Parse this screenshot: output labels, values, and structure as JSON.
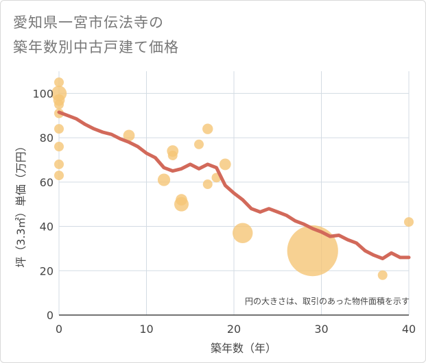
{
  "title_line1": "愛知県一宮市伝法寺の",
  "title_line2": "築年数別中古戸建て価格",
  "chart_data": {
    "type": "scatter+line",
    "title": "愛知県一宮市伝法寺の築年数別中古戸建て価格",
    "xlabel": "築年数（年）",
    "ylabel": "坪（3.3㎡）単価（万円）",
    "xlim": [
      0,
      40
    ],
    "ylim": [
      0,
      110
    ],
    "x_ticks": [
      0,
      10,
      20,
      30,
      40
    ],
    "y_ticks": [
      0,
      20,
      40,
      60,
      80,
      100
    ],
    "annotation": "円の大きさは、取引のあった物件面積を示す",
    "colors": {
      "line": "#d2695a",
      "bubble": "#f5c677",
      "grid": "#d3dbe3"
    },
    "scatter": [
      {
        "x": 0,
        "y": 105,
        "size": 1.0
      },
      {
        "x": 0,
        "y": 100,
        "size": 1.6
      },
      {
        "x": 0,
        "y": 97,
        "size": 1.2
      },
      {
        "x": 0,
        "y": 95,
        "size": 1.0
      },
      {
        "x": 0,
        "y": 91,
        "size": 1.0
      },
      {
        "x": 0,
        "y": 84,
        "size": 1.0
      },
      {
        "x": 0,
        "y": 76,
        "size": 1.0
      },
      {
        "x": 0,
        "y": 68,
        "size": 1.0
      },
      {
        "x": 0,
        "y": 63,
        "size": 1.0
      },
      {
        "x": 8,
        "y": 81,
        "size": 1.2
      },
      {
        "x": 12,
        "y": 61,
        "size": 1.3
      },
      {
        "x": 13,
        "y": 74,
        "size": 1.2
      },
      {
        "x": 13,
        "y": 72,
        "size": 1.0
      },
      {
        "x": 14,
        "y": 52,
        "size": 1.2
      },
      {
        "x": 14,
        "y": 50,
        "size": 1.5
      },
      {
        "x": 16,
        "y": 77,
        "size": 1.0
      },
      {
        "x": 17,
        "y": 84,
        "size": 1.1
      },
      {
        "x": 17,
        "y": 59,
        "size": 1.0
      },
      {
        "x": 18,
        "y": 62,
        "size": 1.0
      },
      {
        "x": 19,
        "y": 68,
        "size": 1.2
      },
      {
        "x": 21,
        "y": 37,
        "size": 2.1
      },
      {
        "x": 29,
        "y": 29,
        "size": 5.3
      },
      {
        "x": 37,
        "y": 18,
        "size": 1.0
      },
      {
        "x": 40,
        "y": 42,
        "size": 1.0
      }
    ],
    "line": {
      "x": [
        0,
        1,
        2,
        3,
        4,
        5,
        6,
        7,
        8,
        9,
        10,
        11,
        12,
        13,
        14,
        15,
        16,
        17,
        18,
        19,
        20,
        21,
        22,
        23,
        24,
        25,
        26,
        27,
        28,
        29,
        30,
        31,
        32,
        33,
        34,
        35,
        36,
        37,
        38,
        39,
        40
      ],
      "y": [
        91.5,
        90,
        88.5,
        86,
        84,
        82.5,
        81.5,
        79.5,
        78,
        76,
        73,
        71,
        66.5,
        65,
        66,
        68,
        66,
        68,
        66.5,
        58.5,
        55,
        52,
        48,
        46.5,
        48,
        46.5,
        45,
        42.5,
        41,
        39,
        37.5,
        35.5,
        36,
        34,
        32.5,
        29,
        27,
        25.5,
        28,
        26,
        26
      ]
    }
  }
}
